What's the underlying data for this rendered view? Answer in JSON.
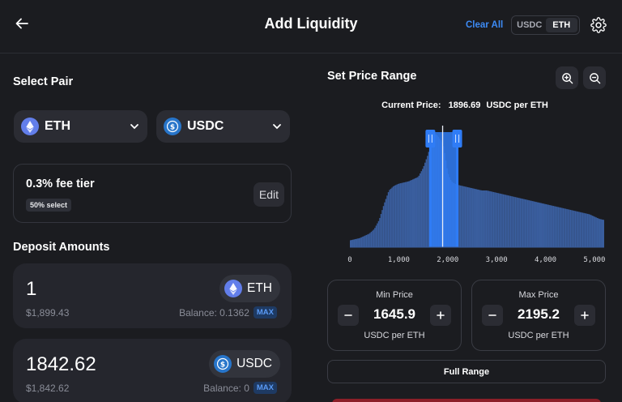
{
  "header": {
    "title": "Add Liquidity",
    "clear_all": "Clear All",
    "unit_options": [
      "USDC",
      "ETH"
    ],
    "unit_selected": "ETH"
  },
  "select_pair": {
    "title": "Select Pair",
    "token_a": {
      "symbol": "ETH",
      "icon": "eth-icon"
    },
    "token_b": {
      "symbol": "USDC",
      "icon": "usdc-icon"
    }
  },
  "fee": {
    "tier_label": "0.3% fee tier",
    "badge": "50% select",
    "edit_label": "Edit"
  },
  "deposit": {
    "title": "Deposit Amounts",
    "cards": [
      {
        "amount": "1",
        "usd": "$1,899.43",
        "token": "ETH",
        "balance": "Balance: 0.1362",
        "max": "MAX"
      },
      {
        "amount": "1842.62",
        "usd": "$1,842.62",
        "token": "USDC",
        "balance": "Balance: 0",
        "max": "MAX"
      }
    ]
  },
  "price_range": {
    "title": "Set Price Range",
    "current_price_label": "Current Price:",
    "current_price_value": "1896.69",
    "current_price_unit": "USDC per ETH",
    "min": {
      "label": "Min Price",
      "value": "1645.9",
      "unit": "USDC per ETH"
    },
    "max": {
      "label": "Max Price",
      "value": "2195.2",
      "unit": "USDC per ETH"
    },
    "full_range_label": "Full Range"
  },
  "chart_data": {
    "type": "area",
    "x_ticks": [
      "0",
      "1,000",
      "2,000",
      "3,000",
      "4,000",
      "5,000"
    ],
    "xlim": [
      0,
      5200
    ],
    "current_price": 1896.69,
    "range_min": 1645.9,
    "range_max": 2195.2,
    "bar_color": "#3a5e9e",
    "selected_color": "#2f7cf6",
    "handle_color": "#2f7cf6",
    "liquidity": [
      [
        0,
        0.06
      ],
      [
        100,
        0.07
      ],
      [
        200,
        0.08
      ],
      [
        300,
        0.1
      ],
      [
        400,
        0.12
      ],
      [
        500,
        0.16
      ],
      [
        600,
        0.24
      ],
      [
        700,
        0.38
      ],
      [
        800,
        0.5
      ],
      [
        900,
        0.54
      ],
      [
        1000,
        0.56
      ],
      [
        1100,
        0.57
      ],
      [
        1200,
        0.58
      ],
      [
        1300,
        0.6
      ],
      [
        1400,
        0.62
      ],
      [
        1500,
        0.7
      ],
      [
        1550,
        0.76
      ],
      [
        1600,
        0.82
      ],
      [
        1650,
        0.9
      ],
      [
        1700,
        0.96
      ],
      [
        1750,
        1.0
      ],
      [
        1800,
        0.98
      ],
      [
        1850,
        0.95
      ],
      [
        1900,
        0.92
      ],
      [
        1950,
        0.8
      ],
      [
        2000,
        0.66
      ],
      [
        2050,
        0.6
      ],
      [
        2100,
        0.57
      ],
      [
        2150,
        0.56
      ],
      [
        2200,
        0.55
      ],
      [
        2300,
        0.54
      ],
      [
        2400,
        0.53
      ],
      [
        2500,
        0.52
      ],
      [
        2600,
        0.51
      ],
      [
        2700,
        0.5
      ],
      [
        2800,
        0.5
      ],
      [
        2900,
        0.49
      ],
      [
        3000,
        0.48
      ],
      [
        3100,
        0.47
      ],
      [
        3200,
        0.46
      ],
      [
        3300,
        0.45
      ],
      [
        3400,
        0.44
      ],
      [
        3500,
        0.43
      ],
      [
        3600,
        0.42
      ],
      [
        3700,
        0.41
      ],
      [
        3800,
        0.4
      ],
      [
        3900,
        0.39
      ],
      [
        4000,
        0.38
      ],
      [
        4100,
        0.37
      ],
      [
        4200,
        0.36
      ],
      [
        4300,
        0.35
      ],
      [
        4400,
        0.34
      ],
      [
        4500,
        0.33
      ],
      [
        4600,
        0.32
      ],
      [
        4700,
        0.31
      ],
      [
        4800,
        0.3
      ],
      [
        4900,
        0.29
      ],
      [
        5000,
        0.27
      ],
      [
        5100,
        0.25
      ],
      [
        5200,
        0.24
      ]
    ]
  },
  "colors": {
    "background": "#1b1c20",
    "accent": "#3d8bf5",
    "card": "#25262d"
  }
}
